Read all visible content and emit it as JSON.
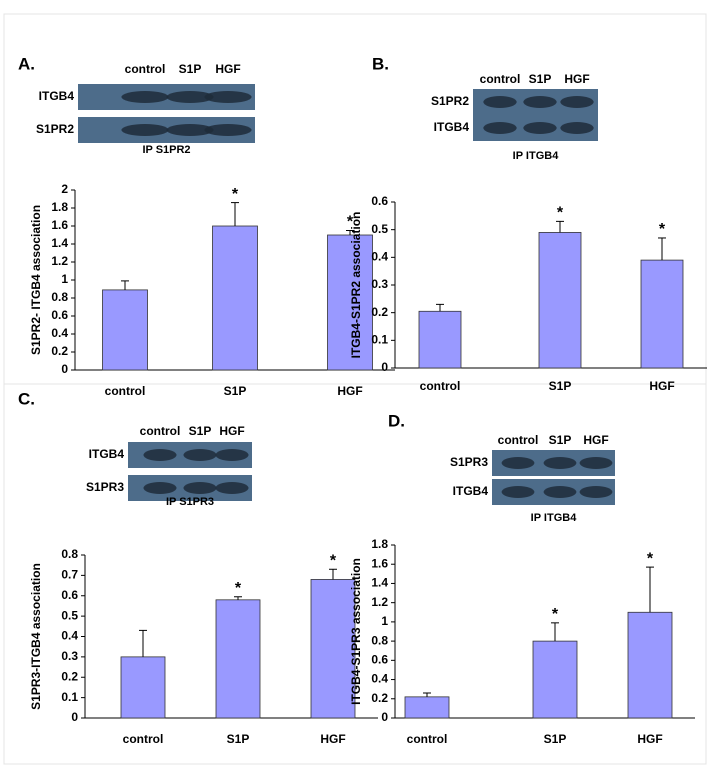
{
  "chart_data": [
    {
      "type": "bar",
      "panel": "A.",
      "ylabel": "S1PR2- ITGB4 association",
      "categories": [
        "control",
        "S1P",
        "HGF"
      ],
      "values": [
        0.89,
        1.6,
        1.5
      ],
      "errors": [
        0.1,
        0.26,
        0.05
      ],
      "annotations": [
        null,
        "*",
        "*"
      ],
      "color": "#9999ff",
      "ylim": [
        0,
        2
      ],
      "yticks": [
        0,
        0.2,
        0.4,
        0.6,
        0.8,
        1,
        1.2,
        1.4,
        1.6,
        1.8,
        2
      ],
      "blot": {
        "rows": [
          "ITGB4",
          "S1PR2"
        ],
        "ip": "IP S1PR2"
      }
    },
    {
      "type": "bar",
      "panel": "B.",
      "ylabel": "ITGB4-S1PR2 association",
      "categories": [
        "control",
        "S1P",
        "HGF"
      ],
      "values": [
        0.205,
        0.49,
        0.39
      ],
      "errors": [
        0.025,
        0.04,
        0.08
      ],
      "annotations": [
        null,
        "*",
        "*"
      ],
      "color": "#9999ff",
      "ylim": [
        0,
        0.6
      ],
      "yticks": [
        0,
        0.1,
        0.2,
        0.3,
        0.4,
        0.5,
        0.6
      ],
      "blot": {
        "rows": [
          "S1PR2",
          "ITGB4"
        ],
        "ip": "IP ITGB4"
      }
    },
    {
      "type": "bar",
      "panel": "C.",
      "ylabel": "S1PR3-ITGB4 association",
      "categories": [
        "control",
        "S1P",
        "HGF"
      ],
      "values": [
        0.3,
        0.58,
        0.68
      ],
      "errors": [
        0.13,
        0.015,
        0.05
      ],
      "annotations": [
        null,
        "*",
        "*"
      ],
      "color": "#9999ff",
      "ylim": [
        0,
        0.8
      ],
      "yticks": [
        0,
        0.1,
        0.2,
        0.3,
        0.4,
        0.5,
        0.6,
        0.7,
        0.8
      ],
      "blot": {
        "rows": [
          "ITGB4",
          "S1PR3"
        ],
        "ip": "IP S1PR3"
      }
    },
    {
      "type": "bar",
      "panel": "D.",
      "ylabel": "ITGB4-S1PR3 association",
      "categories": [
        "control",
        "S1P",
        "HGF"
      ],
      "values": [
        0.22,
        0.8,
        1.1
      ],
      "errors": [
        0.04,
        0.19,
        0.47
      ],
      "annotations": [
        null,
        "*",
        "*"
      ],
      "color": "#9999ff",
      "ylim": [
        0,
        1.8
      ],
      "yticks": [
        0,
        0.2,
        0.4,
        0.6,
        0.8,
        1,
        1.2,
        1.4,
        1.6,
        1.8
      ],
      "blot": {
        "rows": [
          "S1PR3",
          "ITGB4"
        ],
        "ip": "IP ITGB4"
      }
    }
  ]
}
